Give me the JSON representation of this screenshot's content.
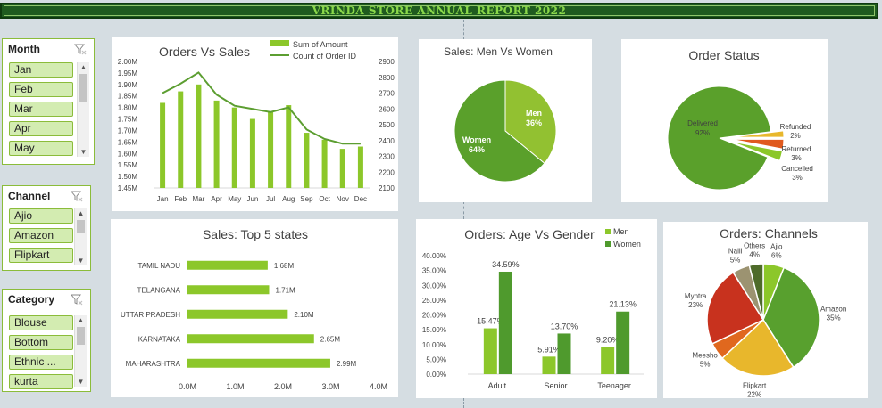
{
  "banner": {
    "title": "VRINDA STORE ANNUAL REPORT 2022"
  },
  "slicers": {
    "month": {
      "title": "Month",
      "items": [
        "Jan",
        "Feb",
        "Mar",
        "Apr",
        "May"
      ]
    },
    "channel": {
      "title": "Channel",
      "items": [
        "Ajio",
        "Amazon",
        "Flipkart"
      ]
    },
    "category": {
      "title": "Category",
      "items": [
        "Blouse",
        "Bottom",
        "Ethnic ...",
        "kurta"
      ]
    }
  },
  "chart_data": [
    {
      "type": "line",
      "title": "Orders Vs Sales",
      "categories": [
        "Jan",
        "Feb",
        "Mar",
        "Apr",
        "May",
        "Jun",
        "Jul",
        "Aug",
        "Sep",
        "Oct",
        "Nov",
        "Dec"
      ],
      "series": [
        {
          "name": "Sum of Amount",
          "type": "bar",
          "axis": "left",
          "values": [
            1.82,
            1.87,
            1.9,
            1.83,
            1.8,
            1.75,
            1.78,
            1.81,
            1.69,
            1.66,
            1.62,
            1.63
          ]
        },
        {
          "name": "Count of Order ID",
          "type": "line",
          "axis": "right",
          "values": [
            2700,
            2760,
            2830,
            2690,
            2620,
            2600,
            2580,
            2610,
            2470,
            2410,
            2380,
            2380
          ]
        }
      ],
      "ylim_left": [
        1.45,
        2.0
      ],
      "yticks_left": [
        "2.00M",
        "1.95M",
        "1.90M",
        "1.85M",
        "1.80M",
        "1.75M",
        "1.70M",
        "1.65M",
        "1.60M",
        "1.55M",
        "1.50M",
        "1.45M"
      ],
      "ylim_right": [
        2100,
        2900
      ],
      "yticks_right": [
        "2900",
        "2800",
        "2700",
        "2600",
        "2500",
        "2400",
        "2300",
        "2200",
        "2100"
      ],
      "legend": "top-right",
      "colors": {
        "bar": "#8cc72a",
        "line": "#5c9e31"
      }
    },
    {
      "type": "pie",
      "title": "Sales: Men Vs Women",
      "slices": [
        {
          "label": "Men",
          "value": 36,
          "text": "36%",
          "color": "#92c131"
        },
        {
          "label": "Women",
          "value": 64,
          "text": "64%",
          "color": "#5aa02b"
        }
      ]
    },
    {
      "type": "pie",
      "title": "Order Status",
      "slices": [
        {
          "label": "Delivered",
          "value": 92,
          "text": "92%",
          "color": "#5aa02b"
        },
        {
          "label": "Refunded",
          "value": 2,
          "text": "2%",
          "color": "#e8b72c"
        },
        {
          "label": "Returned",
          "value": 3,
          "text": "3%",
          "color": "#e05a1e"
        },
        {
          "label": "Cancelled",
          "value": 3,
          "text": "3%",
          "color": "#8cc72a"
        }
      ]
    },
    {
      "type": "bar",
      "title": "Sales: Top 5 states",
      "orientation": "horizontal",
      "categories": [
        "TAMIL NADU",
        "TELANGANA",
        "UTTAR PRADESH",
        "KARNATAKA",
        "MAHARASHTRA"
      ],
      "values": [
        1.68,
        1.71,
        2.1,
        2.65,
        2.99
      ],
      "labels": [
        "1.68M",
        "1.71M",
        "2.10M",
        "2.65M",
        "2.99M"
      ],
      "xlim": [
        0,
        4
      ],
      "xticks": [
        "0.0M",
        "1.0M",
        "2.0M",
        "3.0M",
        "4.0M"
      ],
      "color": "#8cc72a"
    },
    {
      "type": "bar",
      "title": "Orders: Age Vs Gender",
      "categories": [
        "Adult",
        "Senior",
        "Teenager"
      ],
      "series": [
        {
          "name": "Men",
          "values": [
            15.47,
            5.91,
            9.2
          ],
          "labels": [
            "15.47%",
            "5.91%",
            "9.20%"
          ],
          "color": "#8cc72a"
        },
        {
          "name": "Women",
          "values": [
            34.59,
            13.7,
            21.13
          ],
          "labels": [
            "34.59%",
            "13.70%",
            "21.13%"
          ],
          "color": "#4f9a2d"
        }
      ],
      "ylim": [
        0,
        40
      ],
      "yticks": [
        "40.00%",
        "35.00%",
        "30.00%",
        "25.00%",
        "20.00%",
        "15.00%",
        "10.00%",
        "5.00%",
        "0.00%"
      ],
      "legend": "top-right"
    },
    {
      "type": "pie",
      "title": "Orders: Channels",
      "slices": [
        {
          "label": "Ajio",
          "value": 6,
          "text": "6%",
          "color": "#8cc72a"
        },
        {
          "label": "Amazon",
          "value": 35,
          "text": "35%",
          "color": "#58a02e"
        },
        {
          "label": "Flipkart",
          "value": 22,
          "text": "22%",
          "color": "#e8b72c"
        },
        {
          "label": "Meesho",
          "value": 5,
          "text": "5%",
          "color": "#e0681e"
        },
        {
          "label": "Myntra",
          "value": 23,
          "text": "23%",
          "color": "#c8321e"
        },
        {
          "label": "Nalli",
          "value": 5,
          "text": "5%",
          "color": "#9c9371"
        },
        {
          "label": "Others",
          "value": 4,
          "text": "4%",
          "color": "#4e6b2a"
        }
      ]
    }
  ]
}
